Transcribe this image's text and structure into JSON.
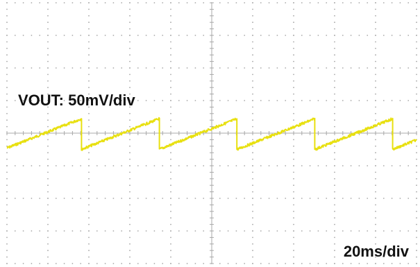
{
  "labels": {
    "channel_scale": "VOUT: 50mV/div",
    "timebase": "20ms/div"
  },
  "chart_data": {
    "type": "line",
    "title": "",
    "xlabel": "",
    "ylabel": "",
    "grid": true,
    "divisions": {
      "x": 10,
      "y": 8
    },
    "series_color": "#e8e010",
    "grid_color": "#a8a8a8",
    "series": [
      {
        "waveform": "sawtooth",
        "period_div": 1.9,
        "low_div": -0.5,
        "high_div": 0.44,
        "noise_div": 0.04,
        "visible_periods": 5.3
      }
    ]
  }
}
